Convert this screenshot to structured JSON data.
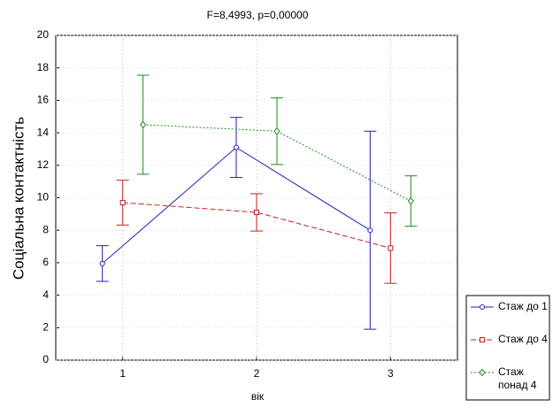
{
  "chart_data": {
    "type": "line",
    "title": "F=8,4993, p=0,00000",
    "x_label": "вік",
    "y_label": "Соціальна контактність",
    "categories": [
      "1",
      "2",
      "3"
    ],
    "ylim": [
      0,
      20
    ],
    "yticks": [
      0,
      2,
      4,
      6,
      8,
      10,
      12,
      14,
      16,
      18,
      20
    ],
    "grid": true,
    "legend_position": "right",
    "series": [
      {
        "name": "Стаж до 1",
        "color": "#1f1fb4",
        "dash": "solid",
        "marker": "circle",
        "values": [
          5.95,
          13.1,
          8.0
        ],
        "errors": [
          1.1,
          1.85,
          6.1
        ]
      },
      {
        "name": "Стаж до 4",
        "color": "#c81e1e",
        "dash": "dashed",
        "marker": "square",
        "values": [
          9.7,
          9.1,
          6.9
        ],
        "errors": [
          1.38,
          1.15,
          2.17
        ]
      },
      {
        "name": "Стаж понад 4",
        "color": "#1e8c1e",
        "dash": "dotted",
        "marker": "diamond",
        "values": [
          14.5,
          14.1,
          9.8
        ],
        "errors": [
          3.05,
          2.05,
          1.55
        ]
      }
    ]
  }
}
